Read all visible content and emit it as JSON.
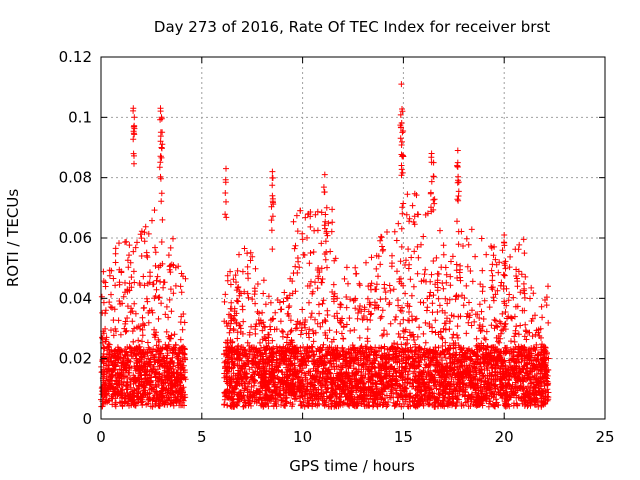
{
  "chart_data": {
    "type": "scatter",
    "title": "Day 273 of 2016, Rate Of TEC Index for receiver brst",
    "xlabel": "GPS time / hours",
    "ylabel": "ROTI / TECUs",
    "xlim": [
      0,
      25
    ],
    "ylim": [
      0,
      0.12
    ],
    "xticks": [
      0,
      5,
      10,
      15,
      20,
      25
    ],
    "yticks": [
      0,
      0.02,
      0.04,
      0.06,
      0.08,
      0.1,
      0.12
    ],
    "xtick_labels": [
      "0",
      "5",
      "10",
      "15",
      "20",
      "25"
    ],
    "ytick_labels": [
      "0",
      "0.02",
      "0.04",
      "0.06",
      "0.08",
      "0.1",
      "0.12"
    ],
    "grid": true,
    "marker": "+",
    "color": "#ff0000",
    "data_segments": [
      {
        "x_start": 0.0,
        "x_end": 4.2
      },
      {
        "x_start": 6.1,
        "x_end": 22.2
      }
    ],
    "notable_points": [
      {
        "x": 1.6,
        "y": 0.103
      },
      {
        "x": 1.65,
        "y": 0.1
      },
      {
        "x": 2.95,
        "y": 0.103
      },
      {
        "x": 3.0,
        "y": 0.1
      },
      {
        "x": 3.0,
        "y": 0.09
      },
      {
        "x": 6.2,
        "y": 0.083
      },
      {
        "x": 8.5,
        "y": 0.082
      },
      {
        "x": 8.5,
        "y": 0.074
      },
      {
        "x": 11.1,
        "y": 0.081
      },
      {
        "x": 11.2,
        "y": 0.07
      },
      {
        "x": 14.9,
        "y": 0.111
      },
      {
        "x": 14.95,
        "y": 0.102
      },
      {
        "x": 14.95,
        "y": 0.095
      },
      {
        "x": 16.4,
        "y": 0.088
      },
      {
        "x": 16.5,
        "y": 0.085
      },
      {
        "x": 17.7,
        "y": 0.089
      },
      {
        "x": 17.7,
        "y": 0.085
      },
      {
        "x": 20.0,
        "y": 0.061
      },
      {
        "x": 21.0,
        "y": 0.055
      }
    ]
  }
}
